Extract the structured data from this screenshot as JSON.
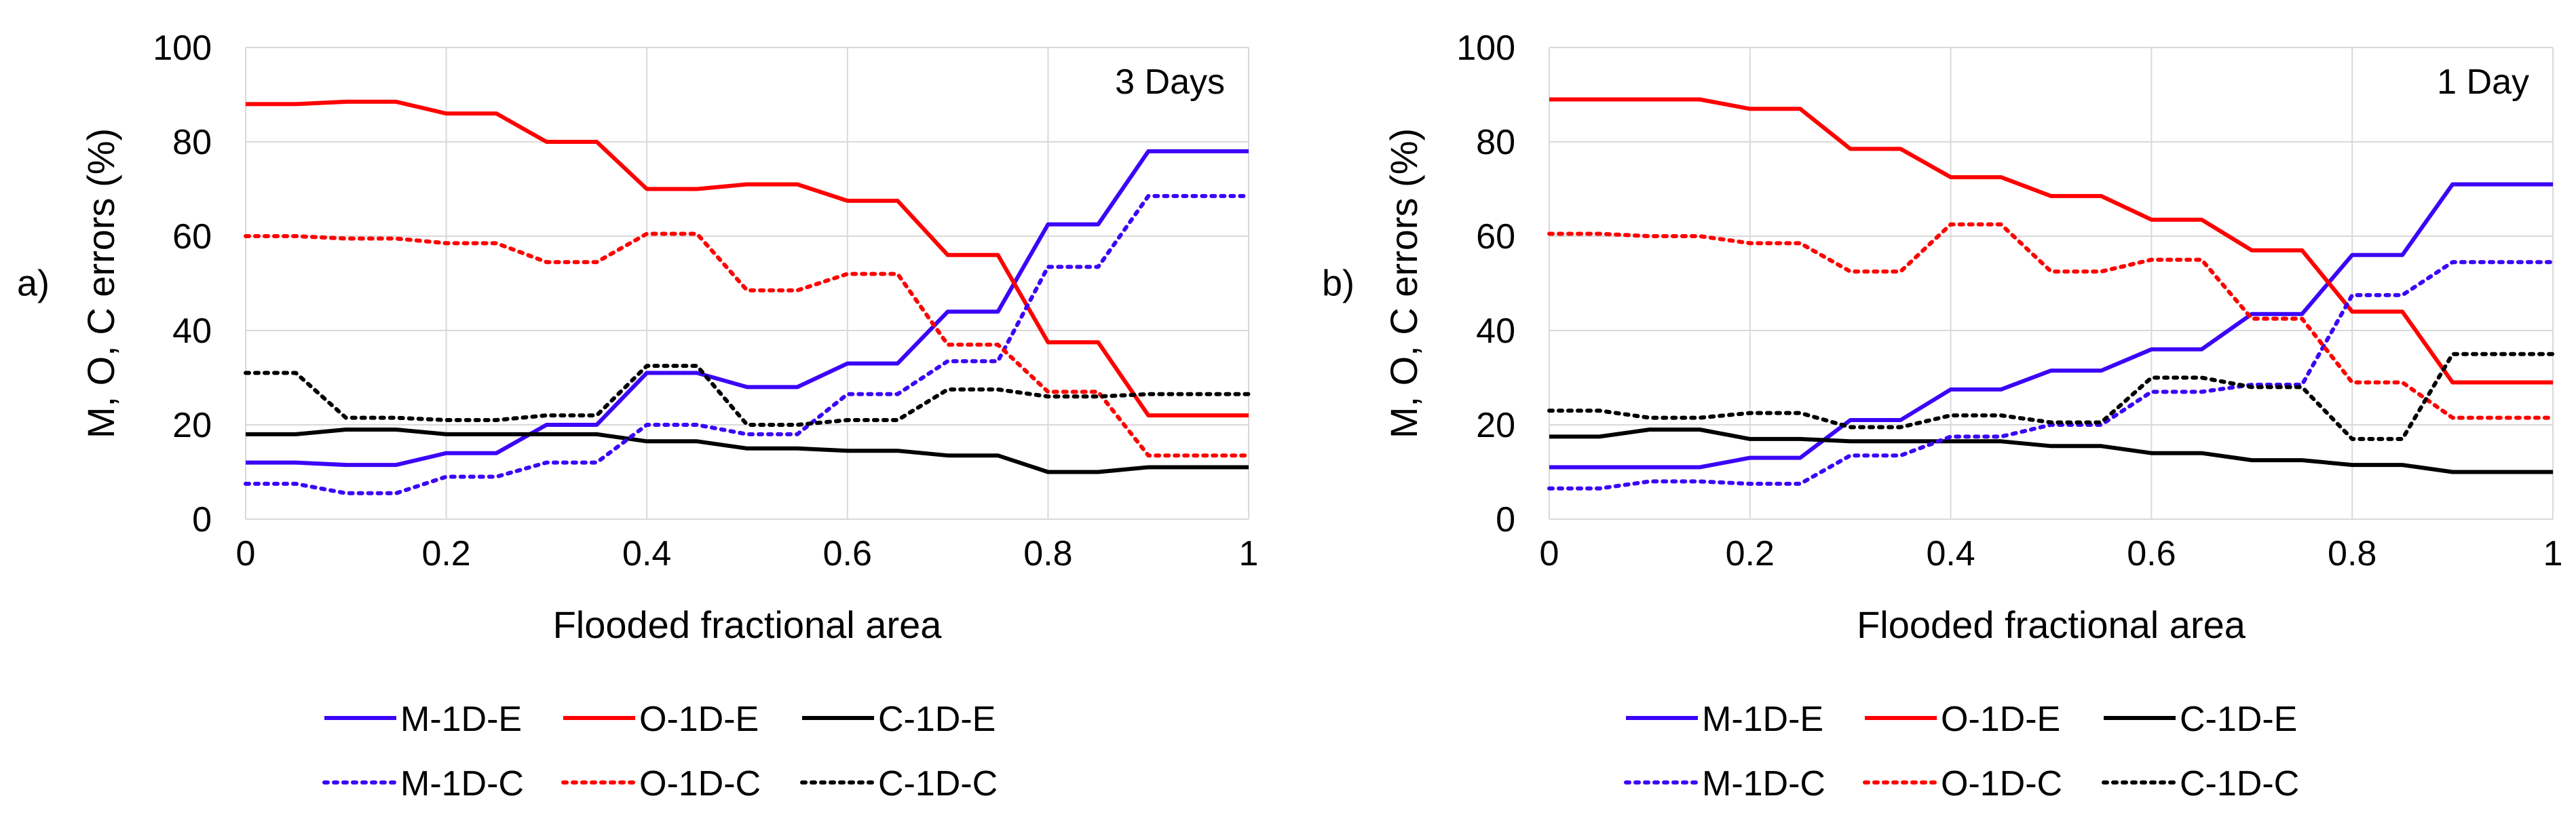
{
  "colors": {
    "blue": "#3B06F7",
    "red": "#FF0000",
    "black": "#000000",
    "grid": "#D9D9D9"
  },
  "chart_data": [
    {
      "type": "line",
      "panel_label": "a)",
      "annotation": "3 Days",
      "xlabel": "Flooded fractional area",
      "ylabel": "M, O, C errors (%)",
      "xlim": [
        0,
        1
      ],
      "ylim": [
        0,
        100
      ],
      "x_ticks": [
        "0",
        "0.2",
        "0.4",
        "0.6",
        "0.8",
        "1"
      ],
      "y_ticks": [
        "0",
        "20",
        "40",
        "60",
        "80",
        "100"
      ],
      "legend": [
        "M-1D-E",
        "O-1D-E",
        "C-1D-E",
        "M-1D-C",
        "O-1D-C",
        "C-1D-C"
      ],
      "series": [
        {
          "name": "M-1D-E",
          "color": "blue",
          "style": "solid",
          "x": [
            0,
            0.05,
            0.1,
            0.15,
            0.2,
            0.25,
            0.3,
            0.35,
            0.4,
            0.45,
            0.5,
            0.55,
            0.6,
            0.65,
            0.7,
            0.75,
            0.8,
            0.85,
            0.9,
            0.95,
            1
          ],
          "values": [
            12,
            12,
            11.5,
            11.5,
            14,
            14,
            20,
            20,
            31,
            31,
            28,
            28,
            33,
            33,
            44,
            44,
            62.5,
            62.5,
            78,
            78,
            78
          ]
        },
        {
          "name": "O-1D-E",
          "color": "red",
          "style": "solid",
          "x": [
            0,
            0.05,
            0.1,
            0.15,
            0.2,
            0.25,
            0.3,
            0.35,
            0.4,
            0.45,
            0.5,
            0.55,
            0.6,
            0.65,
            0.7,
            0.75,
            0.8,
            0.85,
            0.9,
            0.95,
            1
          ],
          "values": [
            88,
            88,
            88.5,
            88.5,
            86,
            86,
            80,
            80,
            70,
            70,
            71,
            71,
            67.5,
            67.5,
            56,
            56,
            37.5,
            37.5,
            22,
            22,
            22
          ]
        },
        {
          "name": "C-1D-E",
          "color": "black",
          "style": "solid",
          "x": [
            0,
            0.05,
            0.1,
            0.15,
            0.2,
            0.25,
            0.3,
            0.35,
            0.4,
            0.45,
            0.5,
            0.55,
            0.6,
            0.65,
            0.7,
            0.75,
            0.8,
            0.85,
            0.9,
            0.95,
            1
          ],
          "values": [
            18,
            18,
            19,
            19,
            18,
            18,
            18,
            18,
            16.5,
            16.5,
            15,
            15,
            14.5,
            14.5,
            13.5,
            13.5,
            10,
            10,
            11,
            11,
            11
          ]
        },
        {
          "name": "M-1D-C",
          "color": "blue",
          "style": "dotted",
          "x": [
            0,
            0.05,
            0.1,
            0.15,
            0.2,
            0.25,
            0.3,
            0.35,
            0.4,
            0.45,
            0.5,
            0.55,
            0.6,
            0.65,
            0.7,
            0.75,
            0.8,
            0.85,
            0.9,
            0.95,
            1
          ],
          "values": [
            7.5,
            7.5,
            5.5,
            5.5,
            9,
            9,
            12,
            12,
            20,
            20,
            18,
            18,
            26.5,
            26.5,
            33.5,
            33.5,
            53.5,
            53.5,
            68.5,
            68.5,
            68.5
          ]
        },
        {
          "name": "O-1D-C",
          "color": "red",
          "style": "dotted",
          "x": [
            0,
            0.05,
            0.1,
            0.15,
            0.2,
            0.25,
            0.3,
            0.35,
            0.4,
            0.45,
            0.5,
            0.55,
            0.6,
            0.65,
            0.7,
            0.75,
            0.8,
            0.85,
            0.9,
            0.95,
            1
          ],
          "values": [
            60,
            60,
            59.5,
            59.5,
            58.5,
            58.5,
            54.5,
            54.5,
            60.5,
            60.5,
            48.5,
            48.5,
            52,
            52,
            37,
            37,
            27,
            27,
            13.5,
            13.5,
            13.5
          ]
        },
        {
          "name": "C-1D-C",
          "color": "black",
          "style": "dotted",
          "x": [
            0,
            0.05,
            0.1,
            0.15,
            0.2,
            0.25,
            0.3,
            0.35,
            0.4,
            0.45,
            0.5,
            0.55,
            0.6,
            0.65,
            0.7,
            0.75,
            0.8,
            0.85,
            0.9,
            0.95,
            1
          ],
          "values": [
            31,
            31,
            21.5,
            21.5,
            21,
            21,
            22,
            22,
            32.5,
            32.5,
            20,
            20,
            21,
            21,
            27.5,
            27.5,
            26,
            26,
            26.5,
            26.5,
            26.5
          ]
        }
      ]
    },
    {
      "type": "line",
      "panel_label": "b)",
      "annotation": "1 Day",
      "xlabel": "Flooded fractional area",
      "ylabel": "M, O, C errors (%)",
      "xlim": [
        0,
        1
      ],
      "ylim": [
        0,
        100
      ],
      "x_ticks": [
        "0",
        "0.2",
        "0.4",
        "0.6",
        "0.8",
        "1"
      ],
      "y_ticks": [
        "0",
        "20",
        "40",
        "60",
        "80",
        "100"
      ],
      "legend": [
        "M-1D-E",
        "O-1D-E",
        "C-1D-E",
        "M-1D-C",
        "O-1D-C",
        "C-1D-C"
      ],
      "series": [
        {
          "name": "M-1D-E",
          "color": "blue",
          "style": "solid",
          "x": [
            0,
            0.05,
            0.1,
            0.15,
            0.2,
            0.25,
            0.3,
            0.35,
            0.4,
            0.45,
            0.5,
            0.55,
            0.6,
            0.65,
            0.7,
            0.75,
            0.8,
            0.85,
            0.9,
            0.95,
            1
          ],
          "values": [
            11,
            11,
            11,
            11,
            13,
            13,
            21,
            21,
            27.5,
            27.5,
            31.5,
            31.5,
            36,
            36,
            43.5,
            43.5,
            56,
            56,
            71,
            71,
            71
          ]
        },
        {
          "name": "O-1D-E",
          "color": "red",
          "style": "solid",
          "x": [
            0,
            0.05,
            0.1,
            0.15,
            0.2,
            0.25,
            0.3,
            0.35,
            0.4,
            0.45,
            0.5,
            0.55,
            0.6,
            0.65,
            0.7,
            0.75,
            0.8,
            0.85,
            0.9,
            0.95,
            1
          ],
          "values": [
            89,
            89,
            89,
            89,
            87,
            87,
            78.5,
            78.5,
            72.5,
            72.5,
            68.5,
            68.5,
            63.5,
            63.5,
            57,
            57,
            44,
            44,
            29,
            29,
            29
          ]
        },
        {
          "name": "C-1D-E",
          "color": "black",
          "style": "solid",
          "x": [
            0,
            0.05,
            0.1,
            0.15,
            0.2,
            0.25,
            0.3,
            0.35,
            0.4,
            0.45,
            0.5,
            0.55,
            0.6,
            0.65,
            0.7,
            0.75,
            0.8,
            0.85,
            0.9,
            0.95,
            1
          ],
          "values": [
            17.5,
            17.5,
            19,
            19,
            17,
            17,
            16.5,
            16.5,
            16.5,
            16.5,
            15.5,
            15.5,
            14,
            14,
            12.5,
            12.5,
            11.5,
            11.5,
            10,
            10,
            10
          ]
        },
        {
          "name": "M-1D-C",
          "color": "blue",
          "style": "dotted",
          "x": [
            0,
            0.05,
            0.1,
            0.15,
            0.2,
            0.25,
            0.3,
            0.35,
            0.4,
            0.45,
            0.5,
            0.55,
            0.6,
            0.65,
            0.7,
            0.75,
            0.8,
            0.85,
            0.9,
            0.95,
            1
          ],
          "values": [
            6.5,
            6.5,
            8,
            8,
            7.5,
            7.5,
            13.5,
            13.5,
            17.5,
            17.5,
            20,
            20,
            27,
            27,
            28.5,
            28.5,
            47.5,
            47.5,
            54.5,
            54.5,
            54.5
          ]
        },
        {
          "name": "O-1D-C",
          "color": "red",
          "style": "dotted",
          "x": [
            0,
            0.05,
            0.1,
            0.15,
            0.2,
            0.25,
            0.3,
            0.35,
            0.4,
            0.45,
            0.5,
            0.55,
            0.6,
            0.65,
            0.7,
            0.75,
            0.8,
            0.85,
            0.9,
            0.95,
            1
          ],
          "values": [
            60.5,
            60.5,
            60,
            60,
            58.5,
            58.5,
            52.5,
            52.5,
            62.5,
            62.5,
            52.5,
            52.5,
            55,
            55,
            42.5,
            42.5,
            29,
            29,
            21.5,
            21.5,
            21.5
          ]
        },
        {
          "name": "C-1D-C",
          "color": "black",
          "style": "dotted",
          "x": [
            0,
            0.05,
            0.1,
            0.15,
            0.2,
            0.25,
            0.3,
            0.35,
            0.4,
            0.45,
            0.5,
            0.55,
            0.6,
            0.65,
            0.7,
            0.75,
            0.8,
            0.85,
            0.9,
            0.95,
            1
          ],
          "values": [
            23,
            23,
            21.5,
            21.5,
            22.5,
            22.5,
            19.5,
            19.5,
            22,
            22,
            20.5,
            20.5,
            30,
            30,
            28,
            28,
            17,
            17,
            35,
            35,
            35
          ]
        }
      ]
    }
  ]
}
